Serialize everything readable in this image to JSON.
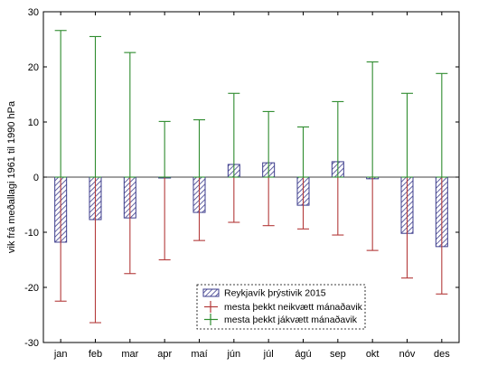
{
  "chart_data": {
    "type": "bar",
    "title": "",
    "xlabel": "",
    "ylabel": "vik frá meðallagi 1961 til 1990 hPa",
    "ylim": [
      -30,
      30
    ],
    "yticks": [
      30,
      20,
      10,
      0,
      -10,
      -20,
      -30
    ],
    "grid": false,
    "legend_position": "bottom-center",
    "categories": [
      "jan",
      "feb",
      "mar",
      "apr",
      "maí",
      "jún",
      "júl",
      "ágú",
      "sep",
      "okt",
      "nóv",
      "des"
    ],
    "series": [
      {
        "name": "Reykjavík þrýstivik 2015",
        "kind": "bar",
        "values": [
          -11.8,
          -7.7,
          -7.4,
          -0.1,
          -6.4,
          2.3,
          2.6,
          -5.1,
          2.8,
          -0.3,
          -10.2,
          -12.6
        ],
        "color": "#5a5a9a"
      },
      {
        "name": "mesta þekkt neikvætt mánaðavik",
        "kind": "errorbar",
        "values": [
          -22.5,
          -26.4,
          -17.5,
          -15.0,
          -11.5,
          -8.2,
          -8.8,
          -9.4,
          -10.5,
          -13.3,
          -18.3,
          -21.2
        ],
        "color": "#b33a3a"
      },
      {
        "name": "mesta þekkt jákvætt mánaðavik",
        "kind": "errorbar",
        "values": [
          26.6,
          25.5,
          22.6,
          10.1,
          10.4,
          15.2,
          11.9,
          9.1,
          13.7,
          20.9,
          15.2,
          18.8
        ],
        "color": "#2e8b2e"
      }
    ]
  }
}
